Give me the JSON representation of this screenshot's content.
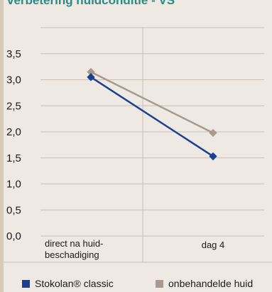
{
  "chart_data": {
    "type": "line",
    "title": "verbetering huidconditie - VS",
    "categories": [
      "direct na huid-beschadiging",
      "dag 4"
    ],
    "category_lines": [
      [
        "direct na huid-",
        "beschadiging"
      ],
      [
        "dag 4"
      ]
    ],
    "yticks": [
      "0,0",
      "0,5",
      "1,0",
      "1,5",
      "2,0",
      "2,5",
      "3,0",
      "3,5"
    ],
    "ylim": [
      0,
      4
    ],
    "grid": true,
    "legend_position": "bottom",
    "series": [
      {
        "name": "Stokolan® classic",
        "values": [
          3.05,
          1.53
        ],
        "color": "#1b3f93",
        "marker": "square"
      },
      {
        "name": "onbehandelde huid",
        "values": [
          3.15,
          1.98
        ],
        "color": "#a89a8e",
        "marker": "square"
      }
    ]
  }
}
